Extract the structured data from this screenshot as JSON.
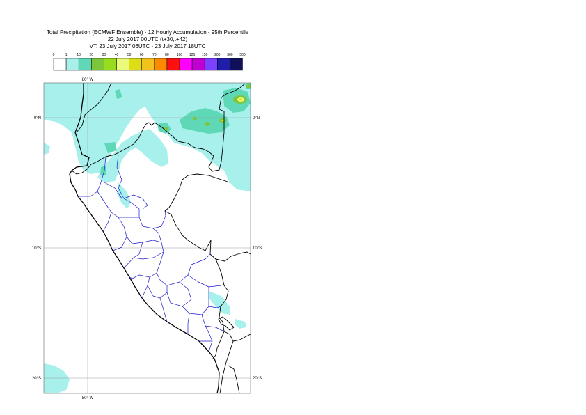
{
  "title": {
    "line1": "Total Precipitation (ECMWF Ensemble) - 12 Hourly Accumulation - 95th Percentile",
    "line2": "22 July 2017 00UTC (t+30,t+42)",
    "line3": "VT: 23 July 2017 06UTC - 23 July 2017 18UTC"
  },
  "legend": {
    "thresholds": [
      "0",
      "1",
      "10",
      "20",
      "30",
      "40",
      "50",
      "60",
      "70",
      "80",
      "100",
      "125",
      "150",
      "200",
      "300",
      "500"
    ],
    "colors": [
      "#ffffff",
      "#a8f0ec",
      "#5fd8b8",
      "#7cc63c",
      "#98dc1e",
      "#eafa7a",
      "#dede16",
      "#f4c21c",
      "#ff8a00",
      "#ff1010",
      "#ff00ff",
      "#c000d0",
      "#7a42ff",
      "#1e1ea8",
      "#10105a"
    ]
  },
  "axes": {
    "lon_top": "80° W",
    "lon_bottom": "80° W",
    "lat_left": [
      "0°N",
      "10°S",
      "20°S"
    ],
    "lat_right": [
      "0°N",
      "10°S",
      "20°S"
    ]
  }
}
